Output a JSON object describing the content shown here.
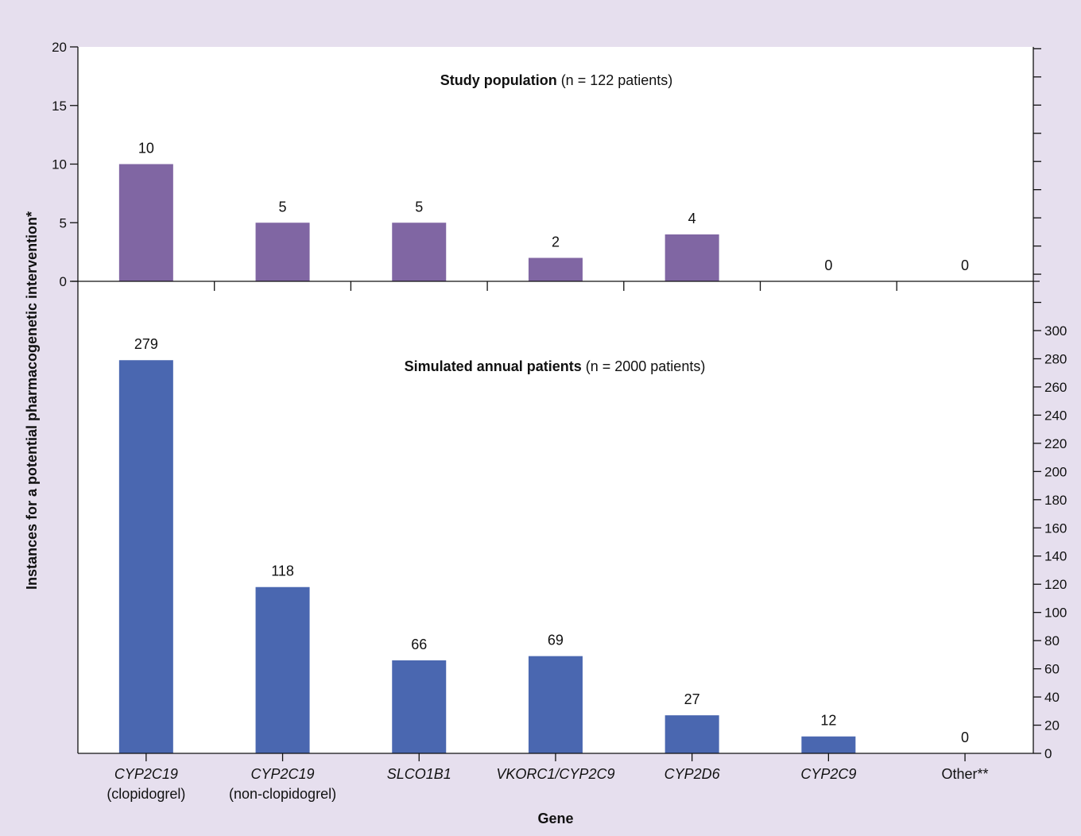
{
  "chart_data": [
    {
      "type": "bar",
      "title": "Study population",
      "subtitle": "(n = 122 patients)",
      "categories": [
        "CYP2C19 (clopidogrel)",
        "CYP2C19 (non-clopidogrel)",
        "SLCO1B1",
        "VKORC1/CYP2C9",
        "CYP2D6",
        "CYP2C9",
        "Other**"
      ],
      "values": [
        10,
        5,
        5,
        2,
        4,
        0,
        0
      ],
      "color": "#8066a3",
      "ylim": [
        0,
        20
      ],
      "yticks": [
        0,
        5,
        10,
        15,
        20
      ],
      "ytick_side": "left",
      "grid": false
    },
    {
      "type": "bar",
      "title": "Simulated annual patients",
      "subtitle": "(n = 2000 patients)",
      "categories": [
        "CYP2C19 (clopidogrel)",
        "CYP2C19 (non-clopidogrel)",
        "SLCO1B1",
        "VKORC1/CYP2C9",
        "CYP2D6",
        "CYP2C9",
        "Other**"
      ],
      "values": [
        279,
        118,
        66,
        69,
        27,
        12,
        0
      ],
      "color": "#4a67b0",
      "ylim": [
        0,
        300
      ],
      "yticks": [
        0,
        20,
        40,
        60,
        80,
        100,
        120,
        140,
        160,
        180,
        200,
        220,
        240,
        260,
        280,
        300
      ],
      "ytick_side": "right",
      "grid": false
    }
  ],
  "x_categories": [
    {
      "line1": "CYP2C19",
      "line2": "(clopidogrel)",
      "italic": true
    },
    {
      "line1": "CYP2C19",
      "line2": "(non-clopidogrel)",
      "italic": true
    },
    {
      "line1": "SLCO1B1",
      "line2": "",
      "italic": true
    },
    {
      "line1": "VKORC1/CYP2C9",
      "line2": "",
      "italic": true
    },
    {
      "line1": "CYP2D6",
      "line2": "",
      "italic": true
    },
    {
      "line1": "CYP2C9",
      "line2": "",
      "italic": true
    },
    {
      "line1": "Other**",
      "line2": "",
      "italic": false
    }
  ],
  "xlabel": "Gene",
  "ylabel": "Instances for a potential pharmacogenetic intervention*",
  "background_color": "#e6dfee"
}
